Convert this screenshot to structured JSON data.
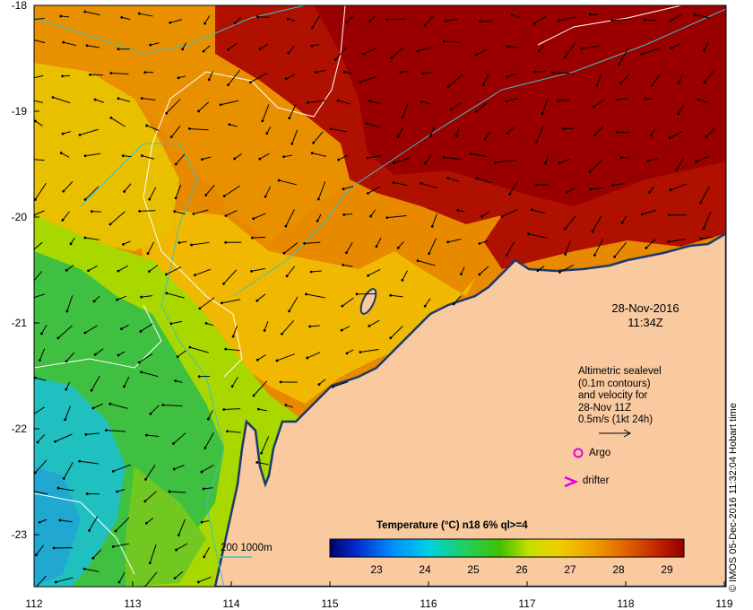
{
  "map": {
    "y_ticks": [
      "-18",
      "-19",
      "-20",
      "-21",
      "-22",
      "-23"
    ],
    "x_ticks": [
      "112",
      "113",
      "114",
      "115",
      "116",
      "117",
      "118",
      "119"
    ],
    "date_line1": "28-Nov-2016",
    "date_line2": "11:34Z",
    "altimetry_lines": [
      "Altimetric sealevel",
      "(0.1m contours)",
      "and velocity for",
      "28-Nov 11Z",
      "0.5m/s (1kt 24h)"
    ],
    "argo_label": "Argo",
    "drifter_label": "drifter",
    "contour_legend": "200  1000m",
    "colorbar_title": "Temperature (°C) n18 6% ql>=4",
    "colorbar_ticks": [
      "23",
      "24",
      "25",
      "26",
      "27",
      "28",
      "29"
    ],
    "credit": "© IMOS 05-Dec-2016 11:32:04 Hobart time",
    "colors": {
      "land": "#f9c9a0",
      "coast": "#1a3a6b",
      "hot": "#a00000",
      "warm": "#e07a00",
      "mild": "#f0b000",
      "cool": "#c8e000",
      "green": "#50c030",
      "cyan": "#20b8c0",
      "argo": "#e000e0",
      "isobath": "#40c0c0"
    }
  }
}
